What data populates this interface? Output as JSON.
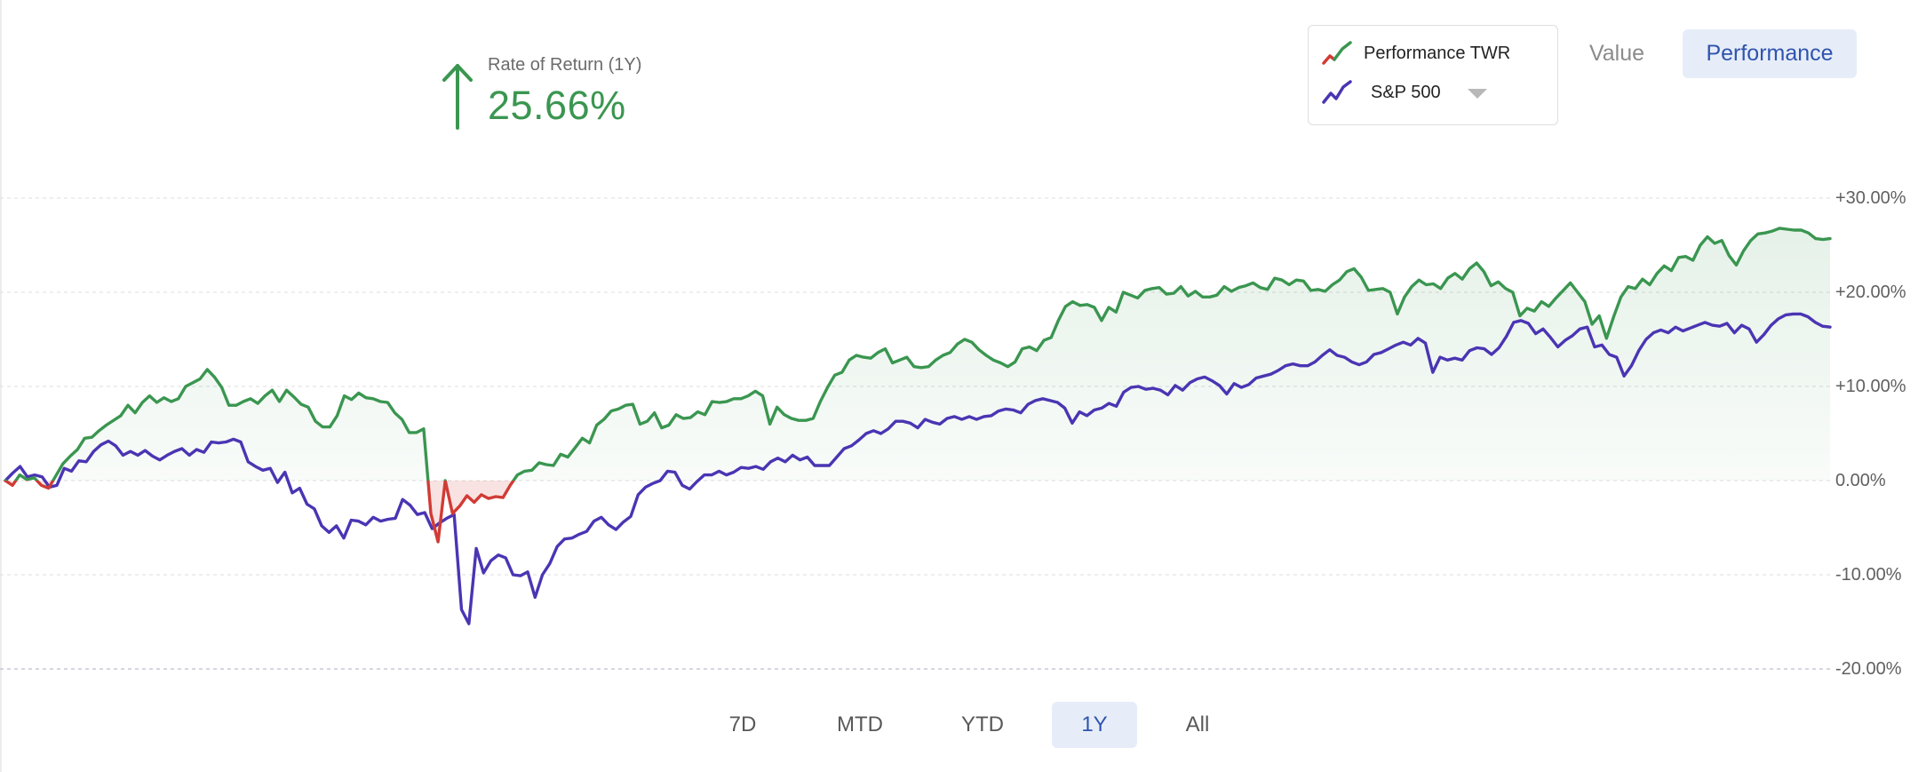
{
  "rate_of_return": {
    "label": "Rate of Return (1Y)",
    "value": "25.66%",
    "direction": "up",
    "color": "#3a9650"
  },
  "legend": {
    "items": [
      {
        "label": "Performance TWR",
        "colors": [
          "#d13b35",
          "#3a9650"
        ]
      },
      {
        "label": "S&P 500",
        "colors": [
          "#4a35b3"
        ],
        "has_dropdown": true
      }
    ]
  },
  "view_toggle": {
    "options": [
      "Value",
      "Performance"
    ],
    "selected": "Performance"
  },
  "range_tabs": {
    "options": [
      "7D",
      "MTD",
      "YTD",
      "1Y",
      "All"
    ],
    "selected": "1Y"
  },
  "chart_data": {
    "type": "line",
    "y_tick_labels": [
      "+30.00%",
      "+20.00%",
      "+10.00%",
      "0.00%",
      "-10.00%",
      "-20.00%"
    ],
    "y_ticks": [
      30,
      20,
      10,
      0,
      -10,
      -20
    ],
    "ylim": [
      -20,
      30
    ],
    "grid": true,
    "legend_position": "top-right",
    "series": [
      {
        "name": "Performance TWR",
        "color": "#3a9650",
        "negative_color": "#d13b35",
        "values": [
          0,
          -0.5,
          0.6,
          0.1,
          0.3,
          -0.5,
          -0.8,
          0.5,
          1.8,
          2.6,
          3.3,
          4.5,
          4.6,
          5.3,
          5.9,
          6.4,
          6.9,
          8.0,
          7.2,
          8.3,
          9.0,
          8.3,
          8.8,
          8.4,
          8.7,
          10.0,
          10.4,
          10.8,
          11.8,
          11.0,
          9.9,
          8.0,
          8.0,
          8.4,
          8.7,
          8.2,
          9.0,
          9.6,
          8.4,
          9.6,
          8.9,
          8.1,
          7.8,
          6.3,
          5.7,
          5.7,
          6.9,
          9.0,
          8.6,
          9.3,
          8.8,
          8.7,
          8.4,
          8.3,
          7.2,
          6.5,
          5.1,
          5.1,
          5.5,
          -3.5,
          -6.5,
          0.0,
          -3.5,
          -2.7,
          -1.6,
          -2.3,
          -1.5,
          -1.9,
          -1.7,
          -1.8,
          -0.5,
          0.6,
          1.0,
          1.1,
          1.9,
          1.7,
          1.6,
          2.8,
          2.5,
          3.5,
          4.5,
          4.0,
          5.9,
          6.5,
          7.4,
          7.6,
          8.0,
          8.1,
          6.0,
          6.3,
          7.2,
          5.6,
          5.9,
          7.0,
          6.6,
          6.7,
          7.3,
          7.0,
          8.4,
          8.3,
          8.4,
          8.7,
          8.7,
          9.0,
          9.5,
          9.0,
          6.0,
          7.8,
          7.0,
          6.6,
          6.4,
          6.4,
          6.6,
          8.4,
          9.9,
          11.2,
          11.5,
          12.8,
          13.3,
          13.1,
          13.0,
          13.6,
          14.0,
          12.5,
          12.8,
          13.1,
          12.1,
          12.0,
          12.1,
          12.8,
          13.3,
          13.6,
          14.5,
          15.0,
          14.7,
          13.9,
          13.3,
          12.8,
          12.5,
          12.1,
          12.6,
          14.0,
          14.2,
          13.8,
          14.9,
          15.2,
          17.0,
          18.5,
          19.0,
          18.6,
          18.7,
          18.4,
          17.0,
          18.4,
          17.9,
          20.0,
          19.7,
          19.4,
          20.2,
          20.4,
          20.5,
          19.8,
          19.9,
          20.6,
          19.6,
          20.1,
          19.5,
          19.5,
          19.7,
          20.6,
          20.1,
          20.5,
          20.7,
          21.0,
          20.5,
          20.3,
          21.5,
          21.3,
          20.8,
          21.3,
          21.2,
          20.2,
          20.3,
          20.1,
          20.8,
          21.3,
          22.2,
          22.5,
          21.6,
          20.2,
          20.3,
          20.4,
          20.0,
          17.7,
          19.5,
          20.6,
          21.3,
          20.8,
          20.9,
          20.4,
          21.5,
          22.0,
          21.4,
          22.5,
          23.1,
          22.2,
          20.7,
          21.1,
          20.4,
          20.0,
          17.5,
          18.3,
          18.0,
          19.0,
          18.5,
          19.4,
          20.2,
          21.0,
          20.0,
          19.0,
          16.6,
          17.5,
          15.1,
          17.4,
          19.5,
          20.6,
          20.4,
          21.4,
          20.8,
          22.0,
          22.8,
          22.3,
          23.7,
          23.8,
          23.4,
          25.0,
          25.9,
          25.2,
          25.5,
          23.9,
          22.9,
          24.4,
          25.5,
          26.2,
          26.3,
          26.5,
          26.8,
          26.7,
          26.6,
          26.6,
          26.3,
          25.7,
          25.6,
          25.7
        ]
      },
      {
        "name": "S&P 500",
        "color": "#4a35b3",
        "values": [
          0,
          0.8,
          1.5,
          0.4,
          0.6,
          0.4,
          -0.7,
          -0.5,
          1.3,
          1.0,
          2.1,
          2.0,
          3.1,
          3.8,
          4.2,
          3.7,
          2.7,
          3.1,
          2.7,
          3.2,
          2.6,
          2.2,
          2.7,
          3.1,
          3.4,
          2.7,
          3.3,
          3.0,
          4.1,
          4.0,
          4.1,
          4.4,
          4.1,
          2.0,
          1.5,
          1.1,
          1.3,
          -0.2,
          0.9,
          -1.3,
          -0.8,
          -2.5,
          -3.0,
          -4.8,
          -5.5,
          -4.8,
          -6.1,
          -4.2,
          -4.3,
          -4.7,
          -3.9,
          -4.3,
          -4.1,
          -4.0,
          -2.0,
          -2.6,
          -3.6,
          -3.4,
          -5.1,
          -4.5,
          -4.0,
          -3.6,
          -13.7,
          -15.2,
          -7.2,
          -9.8,
          -8.5,
          -7.9,
          -8.2,
          -10.0,
          -10.1,
          -9.7,
          -12.4,
          -10.0,
          -8.8,
          -7.0,
          -6.2,
          -6.1,
          -5.7,
          -5.4,
          -4.3,
          -3.9,
          -4.7,
          -5.2,
          -4.4,
          -3.8,
          -1.5,
          -0.7,
          -0.3,
          0.0,
          1.0,
          0.9,
          -0.5,
          -0.9,
          -0.1,
          0.6,
          0.6,
          1.0,
          0.6,
          0.9,
          1.4,
          1.3,
          1.5,
          1.2,
          2.0,
          2.4,
          2.0,
          2.7,
          2.2,
          2.5,
          1.6,
          1.6,
          1.6,
          2.5,
          3.4,
          3.7,
          4.3,
          5.0,
          5.3,
          5.0,
          5.5,
          6.3,
          6.3,
          6.1,
          5.6,
          6.5,
          6.2,
          6.0,
          6.6,
          6.8,
          6.5,
          6.8,
          6.5,
          6.8,
          6.9,
          7.4,
          7.6,
          7.5,
          7.2,
          8.1,
          8.5,
          8.7,
          8.5,
          8.3,
          7.7,
          6.1,
          7.3,
          6.9,
          7.5,
          7.7,
          8.2,
          7.9,
          9.4,
          9.9,
          10.0,
          9.7,
          9.8,
          9.6,
          9.1,
          10.1,
          9.6,
          10.4,
          10.8,
          11.0,
          10.6,
          10.1,
          9.2,
          10.3,
          9.9,
          10.2,
          10.9,
          11.1,
          11.3,
          11.7,
          12.2,
          12.4,
          12.2,
          12.2,
          12.6,
          13.3,
          13.9,
          13.3,
          13.1,
          12.6,
          12.3,
          12.6,
          13.4,
          13.6,
          14.0,
          14.4,
          14.7,
          14.4,
          15.1,
          14.6,
          11.5,
          13.1,
          12.8,
          13.0,
          12.8,
          13.8,
          14.1,
          14.0,
          13.4,
          14.1,
          15.3,
          16.8,
          17.0,
          16.7,
          15.6,
          16.1,
          15.2,
          14.2,
          14.9,
          15.4,
          16.1,
          16.3,
          14.2,
          14.4,
          13.4,
          13.1,
          11.1,
          12.2,
          13.8,
          15.0,
          15.7,
          16.0,
          15.7,
          16.3,
          15.9,
          16.2,
          16.5,
          16.8,
          16.5,
          16.4,
          16.7,
          15.7,
          16.5,
          16.1,
          14.7,
          15.5,
          16.5,
          17.2,
          17.6,
          17.7,
          17.7,
          17.4,
          16.8,
          16.4,
          16.3
        ]
      }
    ]
  }
}
